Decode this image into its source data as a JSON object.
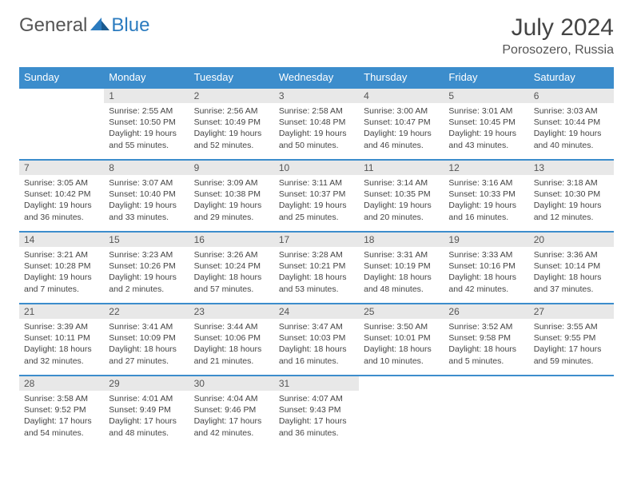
{
  "logo": {
    "text_general": "General",
    "text_blue": "Blue"
  },
  "title": {
    "month": "July 2024",
    "location": "Porosozero, Russia"
  },
  "styles": {
    "header_bg": "#3c8dcc",
    "header_text": "#ffffff",
    "daynum_bg": "#e8e8e8",
    "border_color": "#3c8dcc",
    "text_color": "#444444",
    "logo_gray": "#555555",
    "logo_blue": "#2b7bbf"
  },
  "weekdays": [
    "Sunday",
    "Monday",
    "Tuesday",
    "Wednesday",
    "Thursday",
    "Friday",
    "Saturday"
  ],
  "weeks": [
    [
      null,
      {
        "n": "1",
        "sr": "2:55 AM",
        "ss": "10:50 PM",
        "dl": "19 hours and 55 minutes."
      },
      {
        "n": "2",
        "sr": "2:56 AM",
        "ss": "10:49 PM",
        "dl": "19 hours and 52 minutes."
      },
      {
        "n": "3",
        "sr": "2:58 AM",
        "ss": "10:48 PM",
        "dl": "19 hours and 50 minutes."
      },
      {
        "n": "4",
        "sr": "3:00 AM",
        "ss": "10:47 PM",
        "dl": "19 hours and 46 minutes."
      },
      {
        "n": "5",
        "sr": "3:01 AM",
        "ss": "10:45 PM",
        "dl": "19 hours and 43 minutes."
      },
      {
        "n": "6",
        "sr": "3:03 AM",
        "ss": "10:44 PM",
        "dl": "19 hours and 40 minutes."
      }
    ],
    [
      {
        "n": "7",
        "sr": "3:05 AM",
        "ss": "10:42 PM",
        "dl": "19 hours and 36 minutes."
      },
      {
        "n": "8",
        "sr": "3:07 AM",
        "ss": "10:40 PM",
        "dl": "19 hours and 33 minutes."
      },
      {
        "n": "9",
        "sr": "3:09 AM",
        "ss": "10:38 PM",
        "dl": "19 hours and 29 minutes."
      },
      {
        "n": "10",
        "sr": "3:11 AM",
        "ss": "10:37 PM",
        "dl": "19 hours and 25 minutes."
      },
      {
        "n": "11",
        "sr": "3:14 AM",
        "ss": "10:35 PM",
        "dl": "19 hours and 20 minutes."
      },
      {
        "n": "12",
        "sr": "3:16 AM",
        "ss": "10:33 PM",
        "dl": "19 hours and 16 minutes."
      },
      {
        "n": "13",
        "sr": "3:18 AM",
        "ss": "10:30 PM",
        "dl": "19 hours and 12 minutes."
      }
    ],
    [
      {
        "n": "14",
        "sr": "3:21 AM",
        "ss": "10:28 PM",
        "dl": "19 hours and 7 minutes."
      },
      {
        "n": "15",
        "sr": "3:23 AM",
        "ss": "10:26 PM",
        "dl": "19 hours and 2 minutes."
      },
      {
        "n": "16",
        "sr": "3:26 AM",
        "ss": "10:24 PM",
        "dl": "18 hours and 57 minutes."
      },
      {
        "n": "17",
        "sr": "3:28 AM",
        "ss": "10:21 PM",
        "dl": "18 hours and 53 minutes."
      },
      {
        "n": "18",
        "sr": "3:31 AM",
        "ss": "10:19 PM",
        "dl": "18 hours and 48 minutes."
      },
      {
        "n": "19",
        "sr": "3:33 AM",
        "ss": "10:16 PM",
        "dl": "18 hours and 42 minutes."
      },
      {
        "n": "20",
        "sr": "3:36 AM",
        "ss": "10:14 PM",
        "dl": "18 hours and 37 minutes."
      }
    ],
    [
      {
        "n": "21",
        "sr": "3:39 AM",
        "ss": "10:11 PM",
        "dl": "18 hours and 32 minutes."
      },
      {
        "n": "22",
        "sr": "3:41 AM",
        "ss": "10:09 PM",
        "dl": "18 hours and 27 minutes."
      },
      {
        "n": "23",
        "sr": "3:44 AM",
        "ss": "10:06 PM",
        "dl": "18 hours and 21 minutes."
      },
      {
        "n": "24",
        "sr": "3:47 AM",
        "ss": "10:03 PM",
        "dl": "18 hours and 16 minutes."
      },
      {
        "n": "25",
        "sr": "3:50 AM",
        "ss": "10:01 PM",
        "dl": "18 hours and 10 minutes."
      },
      {
        "n": "26",
        "sr": "3:52 AM",
        "ss": "9:58 PM",
        "dl": "18 hours and 5 minutes."
      },
      {
        "n": "27",
        "sr": "3:55 AM",
        "ss": "9:55 PM",
        "dl": "17 hours and 59 minutes."
      }
    ],
    [
      {
        "n": "28",
        "sr": "3:58 AM",
        "ss": "9:52 PM",
        "dl": "17 hours and 54 minutes."
      },
      {
        "n": "29",
        "sr": "4:01 AM",
        "ss": "9:49 PM",
        "dl": "17 hours and 48 minutes."
      },
      {
        "n": "30",
        "sr": "4:04 AM",
        "ss": "9:46 PM",
        "dl": "17 hours and 42 minutes."
      },
      {
        "n": "31",
        "sr": "4:07 AM",
        "ss": "9:43 PM",
        "dl": "17 hours and 36 minutes."
      },
      null,
      null,
      null
    ]
  ],
  "labels": {
    "sunrise": "Sunrise:",
    "sunset": "Sunset:",
    "daylight": "Daylight:"
  }
}
